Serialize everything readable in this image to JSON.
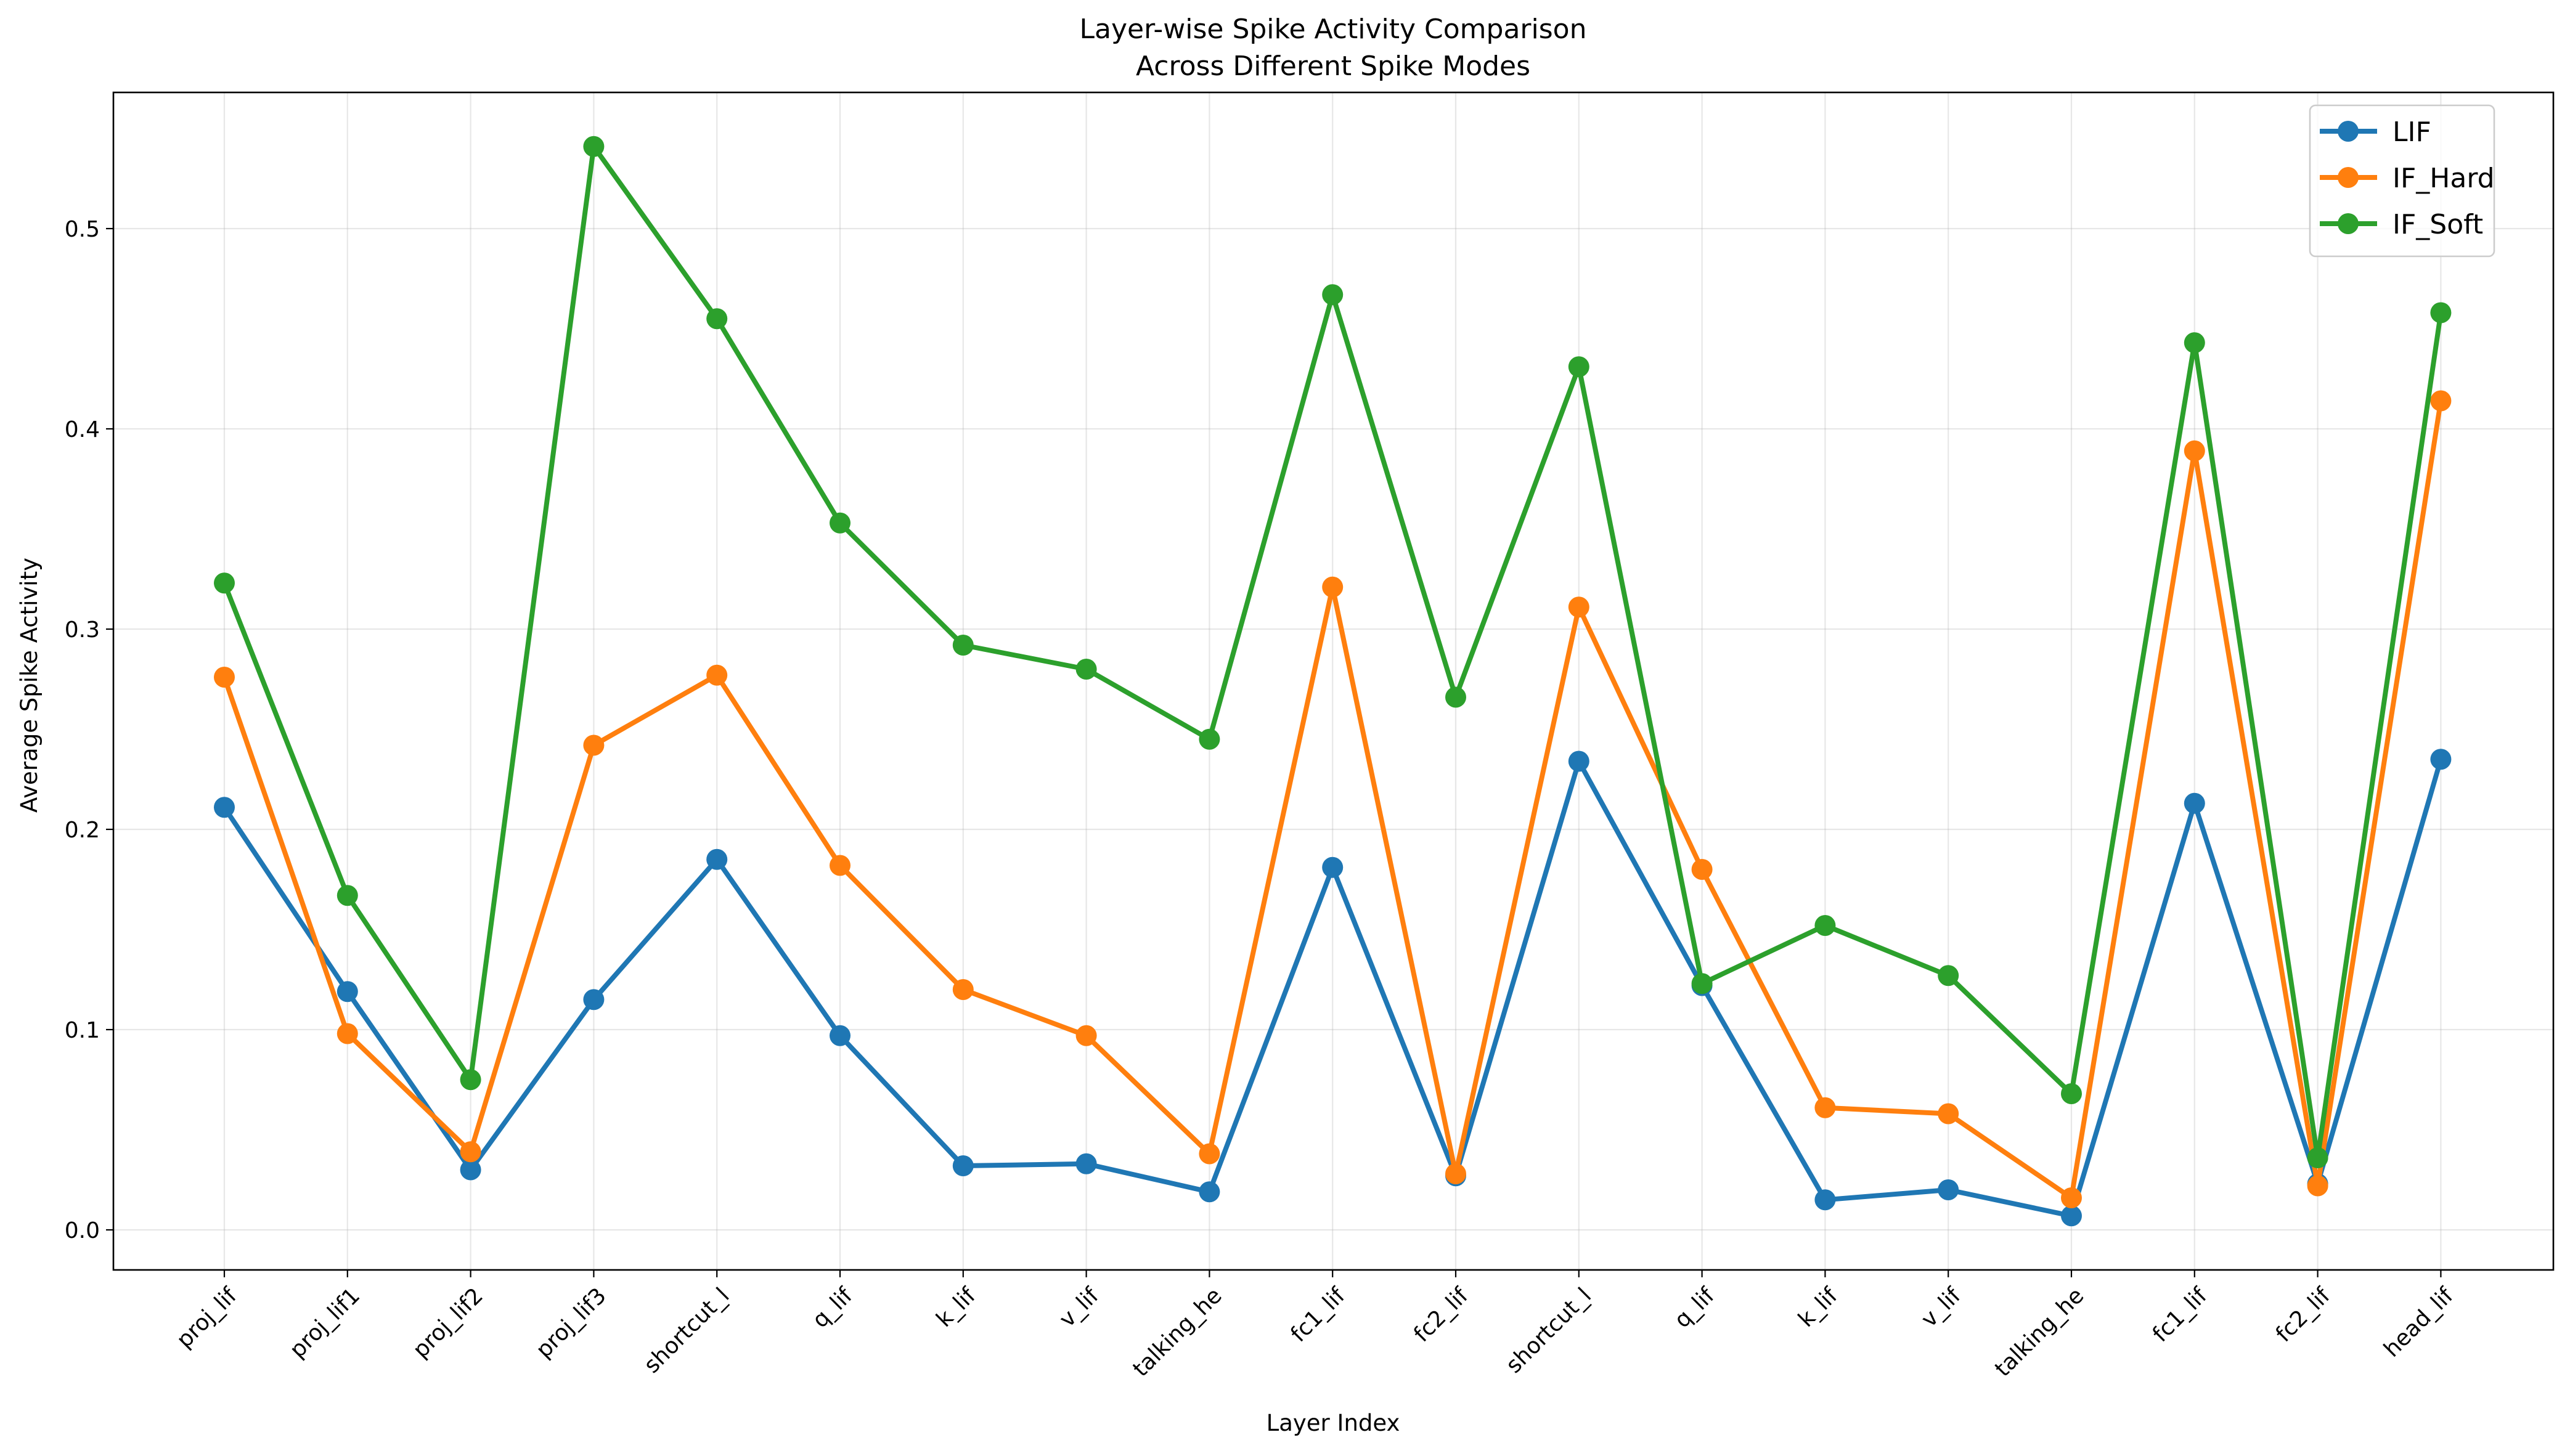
{
  "chart_data": {
    "type": "line",
    "title": "Layer-wise Spike Activity Comparison",
    "subtitle": "Across Different Spike Modes",
    "xlabel": "Layer Index",
    "ylabel": "Average Spike Activity",
    "categories": [
      "proj_lif",
      "proj_lif1",
      "proj_lif2",
      "proj_lif3",
      "shortcut_l",
      "q_lif",
      "k_lif",
      "v_lif",
      "talking_he",
      "fc1_lif",
      "fc2_lif",
      "shortcut_l",
      "q_lif",
      "k_lif",
      "v_lif",
      "talking_he",
      "fc1_lif",
      "fc2_lif",
      "head_lif"
    ],
    "ylim": [
      -0.02,
      0.568
    ],
    "yticks": [
      0.0,
      0.1,
      0.2,
      0.3,
      0.4,
      0.5
    ],
    "ytick_labels": [
      "0.0",
      "0.1",
      "0.2",
      "0.3",
      "0.4",
      "0.5"
    ],
    "grid": true,
    "legend_position": "top-right",
    "series": [
      {
        "name": "LIF",
        "color": "#1f77b4",
        "values": [
          0.211,
          0.119,
          0.03,
          0.115,
          0.185,
          0.097,
          0.032,
          0.033,
          0.019,
          0.181,
          0.027,
          0.234,
          0.122,
          0.015,
          0.02,
          0.007,
          0.213,
          0.023,
          0.235
        ]
      },
      {
        "name": "IF_Hard",
        "color": "#ff7f0e",
        "values": [
          0.276,
          0.098,
          0.039,
          0.242,
          0.277,
          0.182,
          0.12,
          0.097,
          0.038,
          0.321,
          0.028,
          0.311,
          0.18,
          0.061,
          0.058,
          0.016,
          0.389,
          0.022,
          0.414
        ]
      },
      {
        "name": "IF_Soft",
        "color": "#2ca02c",
        "values": [
          0.323,
          0.167,
          0.075,
          0.541,
          0.455,
          0.353,
          0.292,
          0.28,
          0.245,
          0.467,
          0.266,
          0.431,
          0.123,
          0.152,
          0.127,
          0.068,
          0.443,
          0.036,
          0.458
        ]
      }
    ]
  }
}
